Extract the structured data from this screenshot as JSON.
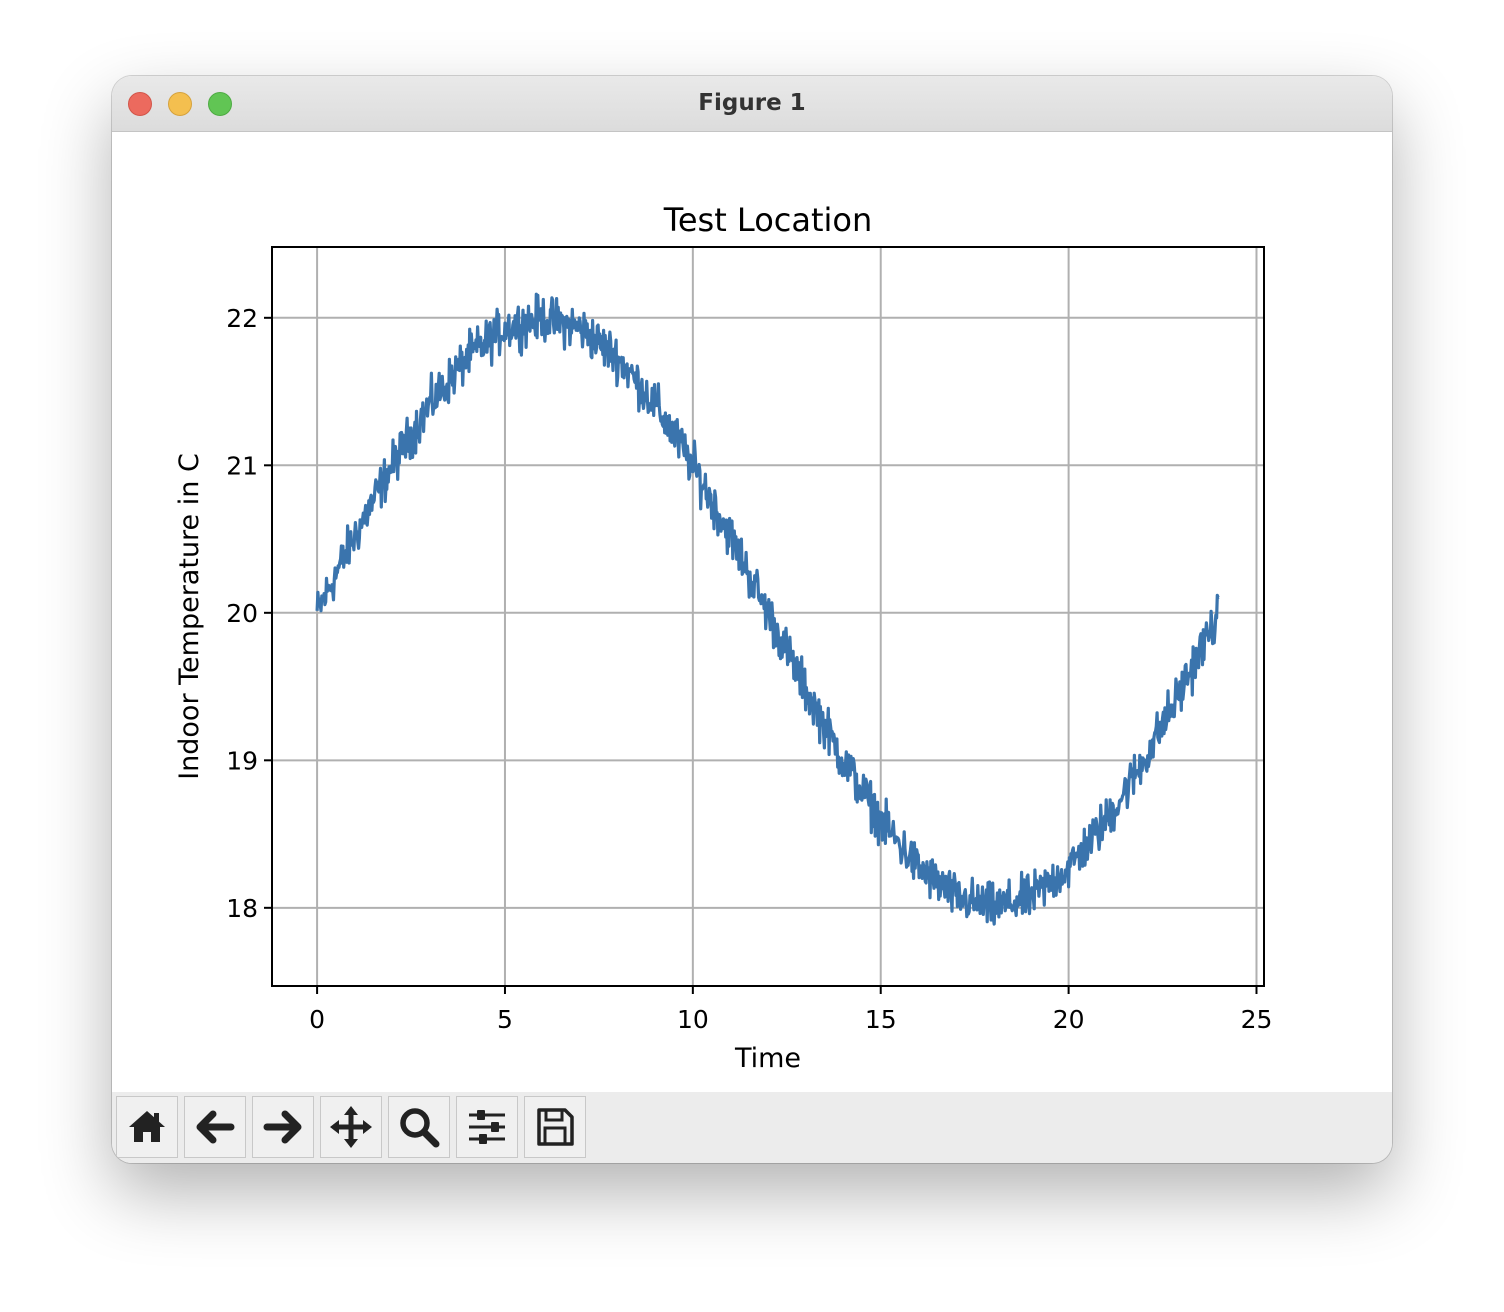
{
  "window": {
    "title": "Figure 1"
  },
  "toolbar": {
    "buttons": [
      {
        "name": "home",
        "icon": "home-icon"
      },
      {
        "name": "back",
        "icon": "arrow-left-icon"
      },
      {
        "name": "forward",
        "icon": "arrow-right-icon"
      },
      {
        "name": "pan",
        "icon": "move-icon"
      },
      {
        "name": "zoom",
        "icon": "magnifier-icon"
      },
      {
        "name": "configure-subplots",
        "icon": "sliders-icon"
      },
      {
        "name": "save",
        "icon": "floppy-disk-icon"
      }
    ]
  },
  "colors": {
    "line": "#3a74ad",
    "grid": "#b0b0b0",
    "titlebar": "#e2e2e2",
    "toolbar": "#ececec"
  },
  "chart_data": {
    "type": "line",
    "title": "Test Location",
    "xlabel": "Time",
    "ylabel": "Indoor Temperature in C",
    "xlim": [
      -1.2,
      25.2
    ],
    "ylim": [
      17.47,
      22.48
    ],
    "xticks": [
      0,
      5,
      10,
      15,
      20,
      25
    ],
    "yticks": [
      18,
      19,
      20,
      21,
      22
    ],
    "grid": true,
    "legend": "none",
    "series": [
      {
        "x": [
          0,
          1,
          2,
          3,
          4,
          5,
          6,
          7,
          8,
          9,
          10,
          11,
          12,
          13,
          14,
          15,
          16,
          17,
          18,
          19,
          20,
          21,
          22,
          23,
          24
        ],
        "y": [
          20.0,
          20.52,
          21.0,
          21.41,
          21.73,
          21.93,
          22.0,
          21.93,
          21.73,
          21.41,
          21.0,
          20.52,
          20.0,
          19.48,
          19.0,
          18.59,
          18.27,
          18.07,
          18.0,
          18.07,
          18.27,
          18.59,
          19.0,
          19.48,
          20.0
        ],
        "noise_amplitude": 0.15,
        "samples_per_unit": 48
      }
    ]
  }
}
